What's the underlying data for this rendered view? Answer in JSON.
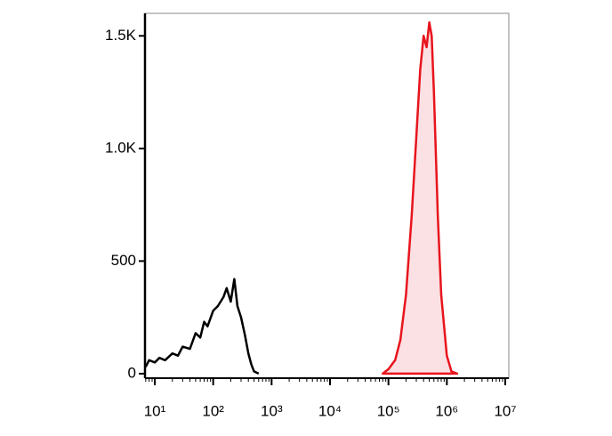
{
  "chart_data": {
    "type": "histogram-overlay",
    "xscale": "log",
    "xlim": [
      6.8,
      11500000
    ],
    "ylim": [
      -20,
      1600
    ],
    "xticks": [
      {
        "value": 10,
        "label": "10¹"
      },
      {
        "value": 100,
        "label": "10²"
      },
      {
        "value": 1000,
        "label": "10³"
      },
      {
        "value": 10000,
        "label": "10⁴"
      },
      {
        "value": 100000,
        "label": "10⁵"
      },
      {
        "value": 1000000,
        "label": "10⁶"
      },
      {
        "value": 10000000,
        "label": "10⁷"
      }
    ],
    "yticks": [
      0,
      500,
      {
        "value": 1000,
        "label": "1.0K"
      },
      {
        "value": 1500,
        "label": "1.5K"
      }
    ],
    "series": [
      {
        "color": "#000000",
        "fill": "none",
        "x": [
          7,
          8,
          10,
          12,
          15,
          20,
          25,
          30,
          40,
          50,
          60,
          70,
          80,
          100,
          120,
          150,
          170,
          200,
          230,
          260,
          300,
          350,
          400,
          450,
          500,
          600
        ],
        "values": [
          30,
          60,
          50,
          70,
          60,
          90,
          80,
          120,
          110,
          180,
          160,
          230,
          210,
          280,
          300,
          340,
          380,
          320,
          420,
          300,
          250,
          170,
          90,
          40,
          10,
          0
        ]
      },
      {
        "color": "#e8141c",
        "fill": "#fbe0e4",
        "x": [
          80000,
          100000,
          130000,
          160000,
          200000,
          250000,
          300000,
          350000,
          400000,
          450000,
          500000,
          550000,
          600000,
          700000,
          800000,
          1000000,
          1200000,
          1500000
        ],
        "values": [
          0,
          20,
          60,
          150,
          350,
          700,
          1050,
          1350,
          1500,
          1450,
          1560,
          1500,
          1250,
          700,
          350,
          80,
          10,
          0
        ]
      }
    ]
  }
}
